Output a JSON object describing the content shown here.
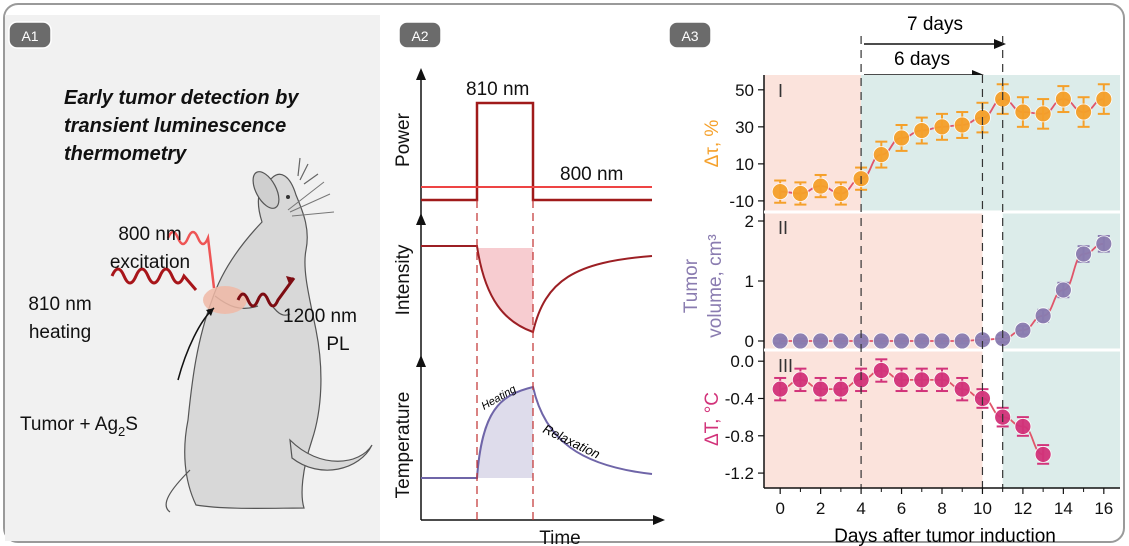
{
  "panels": {
    "a1": {
      "badge": "A1",
      "title_lines": [
        "Early tumor detection by",
        "transient luminescence",
        "thermometry"
      ],
      "excitation_lines": [
        "800 nm",
        "excitation"
      ],
      "heating_lines": [
        "810 nm",
        "heating"
      ],
      "pl_lines": [
        "1200 nm",
        "PL"
      ],
      "tumor_label": "Tumor + Ag",
      "tumor_sub": "2",
      "tumor_suffix": "S"
    },
    "a2": {
      "badge": "A2",
      "label_810": "810 nm",
      "label_800": "800 nm",
      "ylabel_power": "Power",
      "ylabel_intensity": "Intensity",
      "ylabel_temperature": "Temperature",
      "curve_heating": "Heating",
      "curve_relaxation": "Relaxation",
      "xlabel": "Time"
    },
    "a3": {
      "badge": "A3",
      "label_7days": "7 days",
      "label_6days": "6 days",
      "xlabel": "Days after tumor induction"
    }
  },
  "colors": {
    "orange": "#f5a02a",
    "purple": "#8a7cb0",
    "magenta": "#d2337a",
    "fit": "#e0556a",
    "pink_bg": "#fbe3dc",
    "teal_bg": "#dcecea",
    "dark_red": "#a01a1a"
  },
  "chart_data": [
    {
      "type": "scatter",
      "roman": "I",
      "ylabel": "Δτ, %",
      "ylim": [
        -16,
        58
      ],
      "yticks": [
        "50",
        "30",
        "10",
        "-10"
      ],
      "x": [
        0,
        1,
        2,
        3,
        4,
        5,
        6,
        7,
        8,
        9,
        10,
        11,
        12,
        13,
        14,
        15,
        16
      ],
      "y": [
        -5,
        -6,
        -2,
        -6,
        2,
        15,
        24,
        28,
        30,
        31,
        35,
        45,
        38,
        37,
        45,
        38,
        45
      ],
      "err": [
        6,
        6,
        6,
        6,
        6,
        7,
        7,
        7,
        7,
        7,
        8,
        8,
        8,
        8,
        7,
        8,
        8
      ]
    },
    {
      "type": "scatter",
      "roman": "II",
      "ylabel": "Tumor volume, cm³",
      "ylim": [
        -0.15,
        2.15
      ],
      "yticks": [
        "2",
        "1",
        "0"
      ],
      "x": [
        0,
        1,
        2,
        3,
        4,
        5,
        6,
        7,
        8,
        9,
        10,
        11,
        12,
        13,
        14,
        15,
        16
      ],
      "y": [
        0,
        0,
        0,
        0,
        0,
        0,
        0,
        0,
        0,
        0,
        0.02,
        0.04,
        0.18,
        0.42,
        0.85,
        1.45,
        1.62
      ],
      "err": [
        0.04,
        0.04,
        0.04,
        0.04,
        0.04,
        0.04,
        0.04,
        0.04,
        0.04,
        0.04,
        0.05,
        0.06,
        0.07,
        0.1,
        0.12,
        0.13,
        0.13
      ]
    },
    {
      "type": "scatter",
      "roman": "III",
      "ylabel": "ΔT, °C",
      "ylim": [
        -1.36,
        0.12
      ],
      "yticks": [
        "0.0",
        "-0.4",
        "-0.8",
        "-1.2"
      ],
      "x": [
        0,
        1,
        2,
        3,
        4,
        5,
        6,
        7,
        8,
        9,
        10,
        11,
        12,
        13
      ],
      "y": [
        -0.3,
        -0.2,
        -0.3,
        -0.3,
        -0.2,
        -0.1,
        -0.2,
        -0.2,
        -0.2,
        -0.3,
        -0.4,
        -0.6,
        -0.7,
        -1.0
      ],
      "err": [
        0.12,
        0.12,
        0.12,
        0.12,
        0.12,
        0.12,
        0.12,
        0.12,
        0.12,
        0.12,
        0.1,
        0.1,
        0.1,
        0.1
      ]
    }
  ],
  "xaxis": {
    "xlim": [
      -0.8,
      16.8
    ],
    "ticks": [
      "0",
      "2",
      "4",
      "6",
      "8",
      "10",
      "12",
      "14",
      "16"
    ]
  }
}
